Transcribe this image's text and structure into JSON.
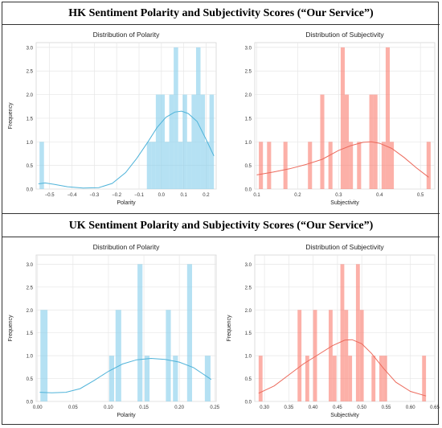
{
  "sections": [
    {
      "title": "HK Sentiment Polarity and Subjectivity Scores (“Our Service”)"
    },
    {
      "title": "UK Sentiment Polarity and Subjectivity Scores (“Our Service”)"
    }
  ],
  "chart_data": [
    {
      "type": "histogram",
      "title": "Distribution of Polarity",
      "xlabel": "Polarity",
      "ylabel": "Frequency",
      "xlim": [
        -0.56,
        0.245
      ],
      "ylim": [
        0,
        3.1
      ],
      "xticks": [
        -0.5,
        -0.4,
        -0.3,
        -0.2,
        -0.1,
        0.0,
        0.1,
        0.2
      ],
      "xtick_labels": [
        "−0.5",
        "−0.4",
        "−0.3",
        "−0.2",
        "−0.1",
        "0.0",
        "0.1",
        "0.2"
      ],
      "yticks": [
        0.0,
        0.5,
        1.0,
        1.5,
        2.0,
        2.5,
        3.0
      ],
      "bars": [
        {
          "x0": -0.545,
          "x1": -0.525,
          "count": 1
        },
        {
          "x0": -0.065,
          "x1": -0.045,
          "count": 1
        },
        {
          "x0": -0.045,
          "x1": -0.025,
          "count": 1
        },
        {
          "x0": -0.025,
          "x1": -0.005,
          "count": 2
        },
        {
          "x0": -0.005,
          "x1": 0.015,
          "count": 2
        },
        {
          "x0": 0.015,
          "x1": 0.035,
          "count": 1
        },
        {
          "x0": 0.035,
          "x1": 0.055,
          "count": 2
        },
        {
          "x0": 0.055,
          "x1": 0.075,
          "count": 3
        },
        {
          "x0": 0.075,
          "x1": 0.095,
          "count": 1
        },
        {
          "x0": 0.095,
          "x1": 0.115,
          "count": 2
        },
        {
          "x0": 0.115,
          "x1": 0.135,
          "count": 1
        },
        {
          "x0": 0.135,
          "x1": 0.155,
          "count": 2
        },
        {
          "x0": 0.155,
          "x1": 0.175,
          "count": 3
        },
        {
          "x0": 0.175,
          "x1": 0.195,
          "count": 2
        },
        {
          "x0": 0.195,
          "x1": 0.215,
          "count": 1
        },
        {
          "x0": 0.215,
          "x1": 0.235,
          "count": 2
        }
      ],
      "kde": [
        [
          -0.55,
          0.11
        ],
        [
          -0.52,
          0.13
        ],
        [
          -0.48,
          0.1
        ],
        [
          -0.42,
          0.05
        ],
        [
          -0.35,
          0.02
        ],
        [
          -0.28,
          0.03
        ],
        [
          -0.22,
          0.12
        ],
        [
          -0.16,
          0.35
        ],
        [
          -0.11,
          0.65
        ],
        [
          -0.06,
          1.0
        ],
        [
          -0.02,
          1.3
        ],
        [
          0.02,
          1.52
        ],
        [
          0.06,
          1.63
        ],
        [
          0.09,
          1.65
        ],
        [
          0.12,
          1.6
        ],
        [
          0.16,
          1.43
        ],
        [
          0.2,
          1.05
        ],
        [
          0.235,
          0.7
        ]
      ],
      "bar_color": "#87ceeb",
      "line_color": "#4fb3d9"
    },
    {
      "type": "histogram",
      "title": "Distribution of Subjectivity",
      "xlabel": "Subjectivity",
      "ylabel": "",
      "xlim": [
        0.095,
        0.535
      ],
      "ylim": [
        0,
        3.1
      ],
      "xticks": [
        0.1,
        0.2,
        0.3,
        0.4,
        0.5
      ],
      "xtick_labels": [
        "0.1",
        "0.2",
        "0.3",
        "0.4",
        "0.5"
      ],
      "yticks": [
        0.0,
        0.5,
        1.0,
        1.5,
        2.0,
        2.5,
        3.0
      ],
      "bars": [
        {
          "x0": 0.105,
          "x1": 0.115,
          "count": 1
        },
        {
          "x0": 0.125,
          "x1": 0.135,
          "count": 1
        },
        {
          "x0": 0.165,
          "x1": 0.175,
          "count": 1
        },
        {
          "x0": 0.225,
          "x1": 0.235,
          "count": 1
        },
        {
          "x0": 0.255,
          "x1": 0.265,
          "count": 2
        },
        {
          "x0": 0.275,
          "x1": 0.285,
          "count": 1
        },
        {
          "x0": 0.305,
          "x1": 0.315,
          "count": 3
        },
        {
          "x0": 0.315,
          "x1": 0.325,
          "count": 2
        },
        {
          "x0": 0.325,
          "x1": 0.335,
          "count": 1
        },
        {
          "x0": 0.345,
          "x1": 0.355,
          "count": 1
        },
        {
          "x0": 0.375,
          "x1": 0.385,
          "count": 2
        },
        {
          "x0": 0.385,
          "x1": 0.395,
          "count": 2
        },
        {
          "x0": 0.405,
          "x1": 0.415,
          "count": 1
        },
        {
          "x0": 0.415,
          "x1": 0.425,
          "count": 3
        },
        {
          "x0": 0.425,
          "x1": 0.435,
          "count": 1
        },
        {
          "x0": 0.515,
          "x1": 0.525,
          "count": 1
        }
      ],
      "kde": [
        [
          0.1,
          0.3
        ],
        [
          0.14,
          0.36
        ],
        [
          0.18,
          0.43
        ],
        [
          0.22,
          0.52
        ],
        [
          0.26,
          0.63
        ],
        [
          0.3,
          0.82
        ],
        [
          0.33,
          0.92
        ],
        [
          0.36,
          0.99
        ],
        [
          0.38,
          1.0
        ],
        [
          0.4,
          0.97
        ],
        [
          0.43,
          0.86
        ],
        [
          0.46,
          0.67
        ],
        [
          0.49,
          0.45
        ],
        [
          0.52,
          0.25
        ]
      ],
      "bar_color": "#fa8072",
      "line_color": "#ec6a5c"
    },
    {
      "type": "histogram",
      "title": "Distribution of Polarity",
      "xlabel": "Polarity",
      "ylabel": "Frequency",
      "xlim": [
        -0.002,
        0.252
      ],
      "ylim": [
        0,
        3.2
      ],
      "xticks": [
        0.0,
        0.05,
        0.1,
        0.15,
        0.2,
        0.25
      ],
      "xtick_labels": [
        "0.00",
        "0.05",
        "0.10",
        "0.15",
        "0.20",
        "0.25"
      ],
      "yticks": [
        0.0,
        0.5,
        1.0,
        1.5,
        2.0,
        2.5,
        3.0
      ],
      "bars": [
        {
          "x0": 0.004,
          "x1": 0.014,
          "count": 2
        },
        {
          "x0": 0.101,
          "x1": 0.108,
          "count": 1
        },
        {
          "x0": 0.11,
          "x1": 0.118,
          "count": 2
        },
        {
          "x0": 0.141,
          "x1": 0.148,
          "count": 3
        },
        {
          "x0": 0.151,
          "x1": 0.158,
          "count": 1
        },
        {
          "x0": 0.181,
          "x1": 0.188,
          "count": 2
        },
        {
          "x0": 0.191,
          "x1": 0.198,
          "count": 1
        },
        {
          "x0": 0.211,
          "x1": 0.218,
          "count": 3
        },
        {
          "x0": 0.236,
          "x1": 0.244,
          "count": 1
        }
      ],
      "kde": [
        [
          0.003,
          0.2
        ],
        [
          0.02,
          0.19
        ],
        [
          0.04,
          0.2
        ],
        [
          0.06,
          0.28
        ],
        [
          0.08,
          0.46
        ],
        [
          0.1,
          0.66
        ],
        [
          0.12,
          0.82
        ],
        [
          0.14,
          0.91
        ],
        [
          0.16,
          0.94
        ],
        [
          0.18,
          0.92
        ],
        [
          0.2,
          0.86
        ],
        [
          0.22,
          0.74
        ],
        [
          0.245,
          0.48
        ]
      ],
      "bar_color": "#87ceeb",
      "line_color": "#4fb3d9"
    },
    {
      "type": "histogram",
      "title": "Distribution of Subjectivity",
      "xlabel": "Subjectivity",
      "ylabel": "Frequency",
      "xlim": [
        0.28,
        0.65
      ],
      "ylim": [
        0,
        3.2
      ],
      "xticks": [
        0.3,
        0.35,
        0.4,
        0.45,
        0.5,
        0.55,
        0.6,
        0.65
      ],
      "xtick_labels": [
        "0.30",
        "0.35",
        "0.40",
        "0.45",
        "0.50",
        "0.55",
        "0.60",
        "0.65"
      ],
      "yticks": [
        0.0,
        0.5,
        1.0,
        1.5,
        2.0,
        2.5,
        3.0
      ],
      "bars": [
        {
          "x0": 0.288,
          "x1": 0.296,
          "count": 1
        },
        {
          "x0": 0.368,
          "x1": 0.376,
          "count": 2
        },
        {
          "x0": 0.384,
          "x1": 0.392,
          "count": 1
        },
        {
          "x0": 0.4,
          "x1": 0.408,
          "count": 2
        },
        {
          "x0": 0.432,
          "x1": 0.44,
          "count": 2
        },
        {
          "x0": 0.44,
          "x1": 0.448,
          "count": 1
        },
        {
          "x0": 0.456,
          "x1": 0.464,
          "count": 3
        },
        {
          "x0": 0.464,
          "x1": 0.472,
          "count": 2
        },
        {
          "x0": 0.472,
          "x1": 0.48,
          "count": 1
        },
        {
          "x0": 0.488,
          "x1": 0.496,
          "count": 3
        },
        {
          "x0": 0.496,
          "x1": 0.504,
          "count": 2
        },
        {
          "x0": 0.52,
          "x1": 0.528,
          "count": 1
        },
        {
          "x0": 0.536,
          "x1": 0.544,
          "count": 1
        },
        {
          "x0": 0.544,
          "x1": 0.552,
          "count": 1
        },
        {
          "x0": 0.624,
          "x1": 0.632,
          "count": 1
        }
      ],
      "kde": [
        [
          0.288,
          0.18
        ],
        [
          0.32,
          0.34
        ],
        [
          0.35,
          0.58
        ],
        [
          0.38,
          0.82
        ],
        [
          0.41,
          1.02
        ],
        [
          0.44,
          1.22
        ],
        [
          0.465,
          1.34
        ],
        [
          0.48,
          1.35
        ],
        [
          0.5,
          1.26
        ],
        [
          0.52,
          1.05
        ],
        [
          0.545,
          0.72
        ],
        [
          0.57,
          0.42
        ],
        [
          0.6,
          0.22
        ],
        [
          0.632,
          0.12
        ]
      ],
      "bar_color": "#fa8072",
      "line_color": "#ec6a5c"
    }
  ]
}
